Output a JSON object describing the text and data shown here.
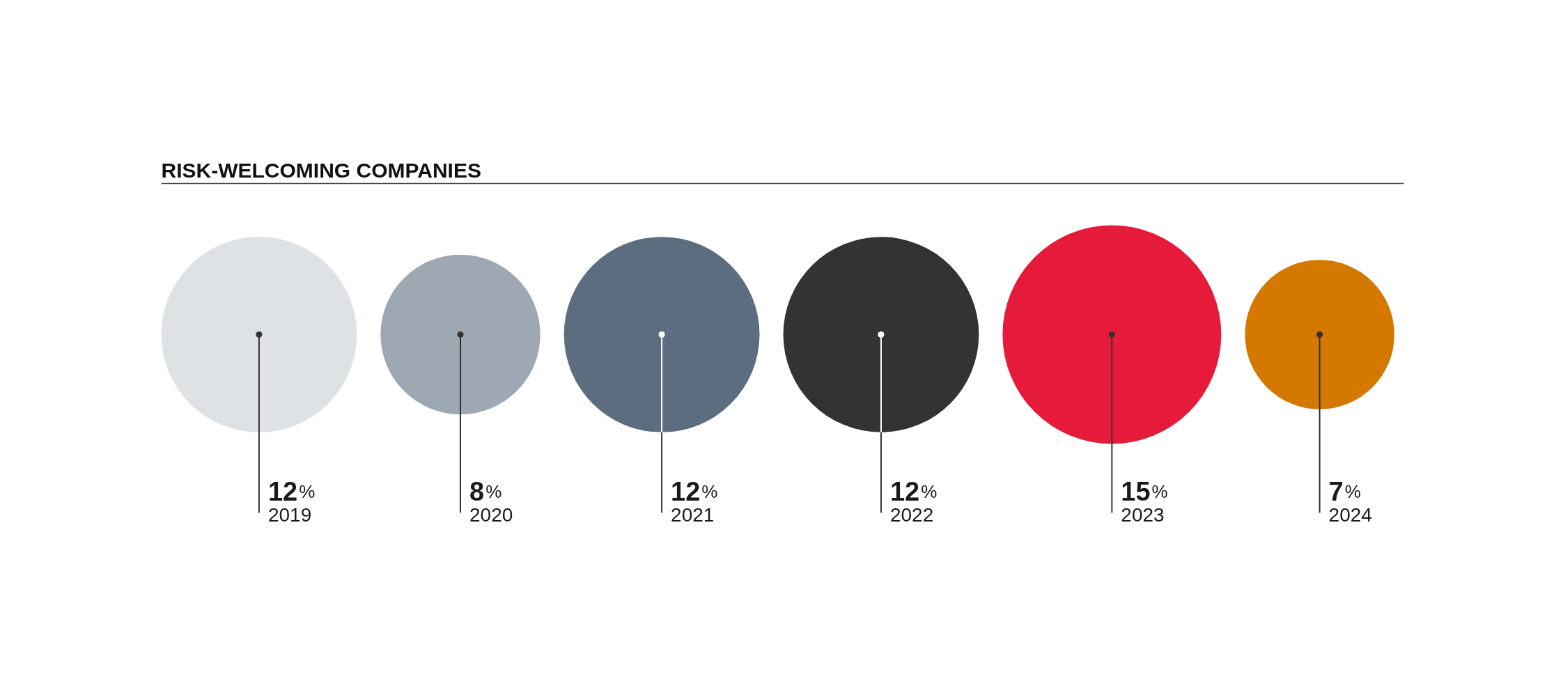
{
  "chart_data": {
    "type": "other",
    "title": "RISK-WELCOMING COMPANIES",
    "categories": [
      "2019",
      "2020",
      "2021",
      "2022",
      "2023",
      "2024"
    ],
    "values": [
      12,
      8,
      12,
      12,
      15,
      7
    ],
    "colors": [
      "#dfe2e5",
      "#9ea8b2",
      "#5b6d7e",
      "#333333",
      "#e61b3c",
      "#d47800"
    ],
    "value_labels": [
      "12%",
      "8%",
      "12%",
      "12%",
      "15%",
      "7%"
    ]
  }
}
